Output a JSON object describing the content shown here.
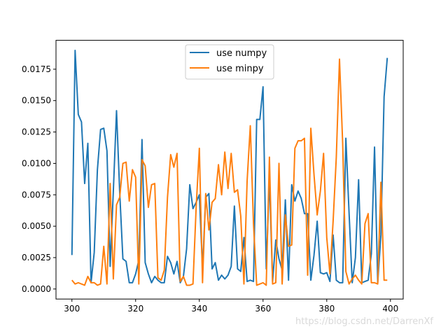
{
  "chart_data": {
    "type": "line",
    "xlim": [
      295,
      404
    ],
    "ylim": [
      -0.0008,
      0.0198
    ],
    "xticks": [
      300,
      320,
      340,
      360,
      380,
      400
    ],
    "yticks": [
      0.0,
      0.0025,
      0.005,
      0.0075,
      0.01,
      0.0125,
      0.015,
      0.0175
    ],
    "ytick_labels": [
      "0.0000",
      "0.0025",
      "0.0050",
      "0.0075",
      "0.0100",
      "0.0125",
      "0.0150",
      "0.0175"
    ],
    "grid": false,
    "legend_position": "top-center",
    "series": [
      {
        "name": "use numpy",
        "color": "#1f77b4",
        "x": [
          300,
          301,
          302,
          303,
          304,
          305,
          306,
          307,
          308,
          309,
          310,
          311,
          312,
          313,
          314,
          315,
          316,
          317,
          318,
          319,
          320,
          321,
          322,
          323,
          324,
          325,
          326,
          327,
          328,
          329,
          330,
          331,
          332,
          333,
          334,
          335,
          336,
          337,
          338,
          339,
          340,
          341,
          342,
          343,
          344,
          345,
          346,
          347,
          348,
          349,
          350,
          351,
          352,
          353,
          354,
          355,
          356,
          357,
          358,
          359,
          360,
          361,
          362,
          363,
          364,
          365,
          366,
          367,
          368,
          369,
          370,
          371,
          372,
          373,
          374,
          375,
          376,
          377,
          378,
          379,
          380,
          381,
          382,
          383,
          384,
          385,
          386,
          387,
          388,
          389,
          390,
          391,
          392,
          393,
          394,
          395,
          396,
          397,
          398,
          399
        ],
        "y": [
          0.0027,
          0.019,
          0.0139,
          0.0133,
          0.0084,
          0.0116,
          0.0005,
          0.0029,
          0.0095,
          0.0127,
          0.0128,
          0.011,
          0.0018,
          0.0078,
          0.0142,
          0.0077,
          0.0024,
          0.0022,
          0.0005,
          0.0005,
          0.0012,
          0.0023,
          0.0119,
          0.0021,
          0.0012,
          0.0005,
          0.001,
          0.0007,
          0.0005,
          0.0005,
          0.0026,
          0.0021,
          0.0012,
          0.0022,
          0.0005,
          0.001,
          0.0032,
          0.0083,
          0.0064,
          0.0069,
          0.0075,
          0.0016,
          0.0073,
          0.0076,
          0.0016,
          0.0021,
          0.0007,
          0.0011,
          0.0008,
          0.0011,
          0.0018,
          0.0066,
          0.0016,
          0.0014,
          0.0041,
          0.0006,
          0.0007,
          0.0006,
          0.0135,
          0.0135,
          0.0161,
          0.0016,
          0.0088,
          0.0006,
          0.0039,
          0.0024,
          0.0015,
          0.0071,
          0.0007,
          0.0083,
          0.007,
          0.0078,
          0.0072,
          0.006,
          0.006,
          0.0007,
          0.0027,
          0.0054,
          0.0013,
          0.0012,
          0.0013,
          0.0006,
          0.0043,
          0.0007,
          0.0005,
          0.0005,
          0.012,
          0.0061,
          0.0005,
          0.0025,
          0.0087,
          0.0005,
          0.0006,
          0.0007,
          0.0028,
          0.0113,
          0.0005,
          0.0043,
          0.0153,
          0.0184
        ]
      },
      {
        "name": "use minpy",
        "color": "#ff7f0e",
        "x": [
          300,
          301,
          302,
          303,
          304,
          305,
          306,
          307,
          308,
          309,
          310,
          311,
          312,
          313,
          314,
          315,
          316,
          317,
          318,
          319,
          320,
          321,
          322,
          323,
          324,
          325,
          326,
          327,
          328,
          329,
          330,
          331,
          332,
          333,
          334,
          335,
          336,
          337,
          338,
          339,
          340,
          341,
          342,
          343,
          344,
          345,
          346,
          347,
          348,
          349,
          350,
          351,
          352,
          353,
          354,
          355,
          356,
          357,
          358,
          359,
          360,
          361,
          362,
          363,
          364,
          365,
          366,
          367,
          368,
          369,
          370,
          371,
          372,
          373,
          374,
          375,
          376,
          377,
          378,
          379,
          380,
          381,
          382,
          383,
          384,
          385,
          386,
          387,
          388,
          389,
          390,
          391,
          392,
          393,
          394,
          395,
          396,
          397,
          398,
          399
        ],
        "y": [
          0.0007,
          0.0004,
          0.0005,
          0.0004,
          0.0003,
          0.001,
          0.0005,
          0.0005,
          0.0003,
          0.0004,
          0.0034,
          0.0004,
          0.0084,
          0.0008,
          0.0067,
          0.0073,
          0.01,
          0.0101,
          0.007,
          0.0095,
          0.0089,
          0.0004,
          0.0103,
          0.0098,
          0.0065,
          0.0083,
          0.0084,
          0.0009,
          0.0007,
          0.0015,
          0.0073,
          0.0107,
          0.0097,
          0.0108,
          0.0006,
          0.001,
          0.0003,
          0.0003,
          0.0004,
          0.0065,
          0.0112,
          0.0005,
          0.0076,
          0.0047,
          0.0069,
          0.0072,
          0.0099,
          0.0075,
          0.0109,
          0.008,
          0.0108,
          0.0077,
          0.0079,
          0.0058,
          0.0004,
          0.0086,
          0.013,
          0.0052,
          0.0003,
          0.0004,
          0.0005,
          0.0003,
          0.0105,
          0.0004,
          0.0005,
          0.01,
          0.0004,
          0.0059,
          0.0034,
          0.0035,
          0.0112,
          0.0118,
          0.0118,
          0.012,
          0.0011,
          0.0128,
          0.0091,
          0.0059,
          0.0078,
          0.0108,
          0.0041,
          0.0012,
          0.0054,
          0.0105,
          0.0183,
          0.0116,
          0.0014,
          0.0004,
          0.0008,
          0.0011,
          0.0007,
          0.0004,
          0.0052,
          0.006,
          0.0005,
          0.0005,
          0.0004,
          0.0085,
          0.0007,
          0.0007
        ]
      }
    ]
  },
  "watermark": "https://blog.csdn.net/DarrenXf"
}
